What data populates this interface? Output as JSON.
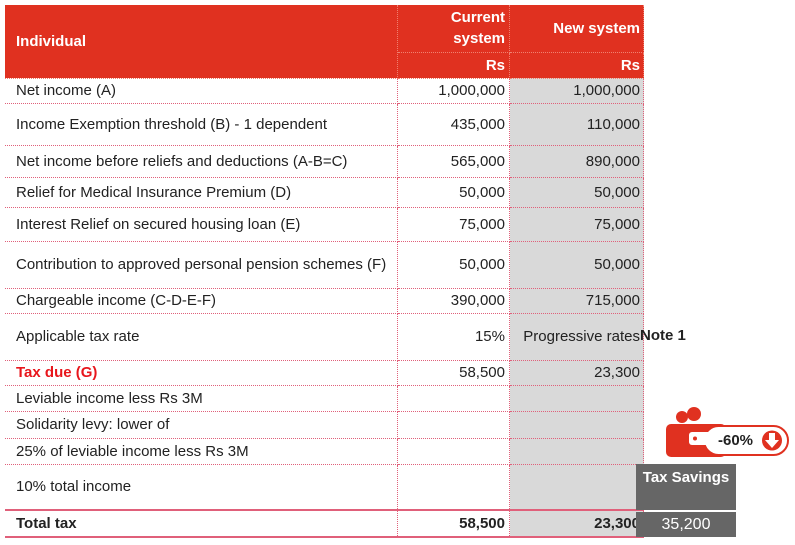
{
  "header": {
    "label": "Individual",
    "col1": "Current system",
    "col2": "New system",
    "unit1": "Rs",
    "unit2": "Rs"
  },
  "rows": [
    {
      "label": "Net income (A)",
      "current": "1,000,000",
      "new": "1,000,000"
    },
    {
      "label": "Income Exemption threshold (B) - 1 dependent",
      "current": "435,000",
      "new": "110,000"
    },
    {
      "label": "Net income before reliefs and deductions (A-B=C)",
      "current": "565,000",
      "new": "890,000"
    },
    {
      "label": "Relief for Medical Insurance Premium (D)",
      "current": "50,000",
      "new": "50,000"
    },
    {
      "label": "Interest Relief on secured housing loan (E)",
      "current": "75,000",
      "new": "75,000"
    },
    {
      "label": "Contribution to approved personal pension schemes (F)",
      "current": "50,000",
      "new": "50,000"
    },
    {
      "label": "Chargeable income (C-D-E-F)",
      "current": "390,000",
      "new": "715,000"
    },
    {
      "label": "Applicable tax rate",
      "current": "15%",
      "new": "Progressive rates"
    },
    {
      "label": "Tax due (G)",
      "current": "58,500",
      "new": "23,300"
    },
    {
      "label": "Leviable income less Rs 3M",
      "current": "",
      "new": ""
    },
    {
      "label": "Solidarity levy: lower of",
      "current": "",
      "new": ""
    },
    {
      "label": "25% of leviable income less Rs 3M",
      "current": "",
      "new": ""
    },
    {
      "label": "10% total income",
      "current": "",
      "new": ""
    }
  ],
  "total": {
    "label": "Total tax",
    "current": "58,500",
    "new": "23,300"
  },
  "note": "Note 1",
  "savings": {
    "label": "Tax Savings",
    "value": "35,200",
    "badge": "-60%",
    "badge_icon": "wallet-icon",
    "arrow_icon": "arrow-down-circle-icon"
  },
  "colors": {
    "brand": "#e03120",
    "savings_bg": "#666666",
    "new_col_bg": "#d9d9d9"
  }
}
